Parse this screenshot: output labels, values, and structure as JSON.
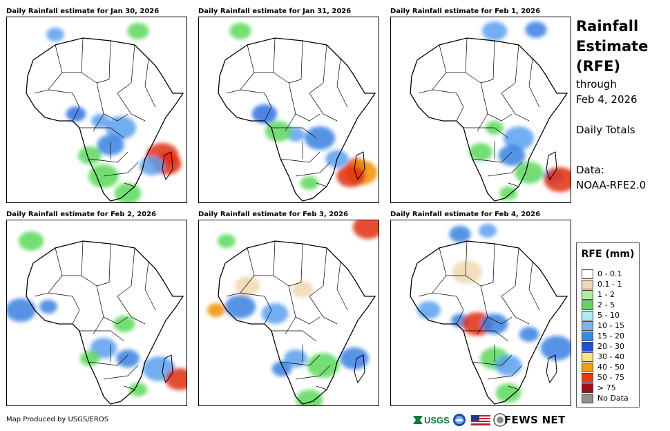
{
  "panels": [
    {
      "title": "Daily Rainfall estimate for Jan 30, 2026",
      "blobs": [
        [
          135,
          150,
          "#5aa0ee"
        ],
        [
          165,
          160,
          "#5aa0ee"
        ],
        [
          150,
          185,
          "#3a80e0"
        ],
        [
          120,
          200,
          "#5cd85c"
        ],
        [
          100,
          140,
          "#2f6fe0"
        ],
        [
          225,
          200,
          "#e03010"
        ],
        [
          232,
          212,
          "#e03010"
        ],
        [
          210,
          215,
          "#5aa0ee"
        ],
        [
          190,
          20,
          "#5cd85c"
        ],
        [
          70,
          25,
          "#5aa0ee"
        ],
        [
          140,
          230,
          "#5cd85c"
        ],
        [
          175,
          255,
          "#5cd85c"
        ]
      ]
    },
    {
      "title": "Daily Rainfall estimate for Jan 31, 2026",
      "blobs": [
        [
          140,
          170,
          "#5aa0ee"
        ],
        [
          175,
          175,
          "#3a80e0"
        ],
        [
          115,
          165,
          "#5cd85c"
        ],
        [
          200,
          205,
          "#5aa0ee"
        ],
        [
          228,
          215,
          "#e03010"
        ],
        [
          235,
          225,
          "#f09000"
        ],
        [
          220,
          230,
          "#e03010"
        ],
        [
          95,
          140,
          "#2f6fe0"
        ],
        [
          60,
          20,
          "#5cd85c"
        ],
        [
          160,
          240,
          "#5cd85c"
        ]
      ]
    },
    {
      "title": "Daily Rainfall estimate for Feb 1, 2026",
      "blobs": [
        [
          150,
          160,
          "#5cd85c"
        ],
        [
          185,
          175,
          "#5aa0ee"
        ],
        [
          175,
          200,
          "#3a80e0"
        ],
        [
          130,
          195,
          "#5cd85c"
        ],
        [
          235,
          230,
          "#5aa0ee"
        ],
        [
          245,
          235,
          "#e03010"
        ],
        [
          200,
          225,
          "#5cd85c"
        ],
        [
          150,
          20,
          "#5aa0ee"
        ],
        [
          210,
          18,
          "#3a80e0"
        ],
        [
          170,
          255,
          "#5cd85c"
        ]
      ]
    },
    {
      "title": "Daily Rainfall estimate for Feb 2, 2026",
      "blobs": [
        [
          60,
          125,
          "#3a80e0"
        ],
        [
          20,
          130,
          "#3a80e0"
        ],
        [
          140,
          185,
          "#5aa0ee"
        ],
        [
          175,
          200,
          "#3a80e0"
        ],
        [
          120,
          200,
          "#5cd85c"
        ],
        [
          220,
          215,
          "#5aa0ee"
        ],
        [
          250,
          230,
          "#e03010"
        ],
        [
          35,
          30,
          "#5cd85c"
        ],
        [
          170,
          150,
          "#5cd85c"
        ],
        [
          190,
          245,
          "#5cd85c"
        ]
      ]
    },
    {
      "title": "Daily Rainfall estimate for Feb 3, 2026",
      "blobs": [
        [
          25,
          130,
          "#f09000"
        ],
        [
          60,
          125,
          "#3a80e0"
        ],
        [
          110,
          135,
          "#5aa0ee"
        ],
        [
          140,
          200,
          "#5aa0ee"
        ],
        [
          120,
          215,
          "#3a80e0"
        ],
        [
          180,
          210,
          "#5cd85c"
        ],
        [
          225,
          200,
          "#3a80e0"
        ],
        [
          70,
          95,
          "#f0d8b0"
        ],
        [
          150,
          100,
          "#f0d8b0"
        ],
        [
          40,
          30,
          "#5cd85c"
        ],
        [
          245,
          10,
          "#e03010"
        ],
        [
          160,
          260,
          "#5cd85c"
        ]
      ]
    },
    {
      "title": "Daily Rainfall estimate for Feb 4, 2026",
      "blobs": [
        [
          100,
          145,
          "#3a80e0"
        ],
        [
          125,
          150,
          "#e03010"
        ],
        [
          150,
          150,
          "#3a80e0"
        ],
        [
          55,
          130,
          "#5aa0ee"
        ],
        [
          200,
          165,
          "#3a80e0"
        ],
        [
          240,
          185,
          "#3a80e0"
        ],
        [
          150,
          200,
          "#5cd85c"
        ],
        [
          170,
          250,
          "#5cd85c"
        ],
        [
          100,
          20,
          "#3a80e0"
        ],
        [
          140,
          15,
          "#5aa0ee"
        ],
        [
          110,
          75,
          "#f0d8b0"
        ],
        [
          170,
          210,
          "#5aa0ee"
        ]
      ]
    }
  ],
  "side": {
    "title_line1": "Rainfall",
    "title_line2": "Estimate",
    "title_line3": "(RFE)",
    "through": "through",
    "date": "Feb 4, 2026",
    "totals": "Daily Totals",
    "data_label": "Data:",
    "data_source": "NOAA-RFE2.0"
  },
  "legend": {
    "title": "RFE (mm)",
    "items": [
      {
        "label": "0 - 0.1",
        "color": "#ffffff"
      },
      {
        "label": "0.1 - 1",
        "color": "#f0d8b8"
      },
      {
        "label": "1 - 2",
        "color": "#a8f0a0"
      },
      {
        "label": "2 - 5",
        "color": "#5cd85c"
      },
      {
        "label": "5 - 10",
        "color": "#b0ecf4"
      },
      {
        "label": "10 - 15",
        "color": "#78b4ee"
      },
      {
        "label": "15 - 20",
        "color": "#3a8ae8"
      },
      {
        "label": "20 - 30",
        "color": "#2050d8"
      },
      {
        "label": "30 - 40",
        "color": "#f8e090"
      },
      {
        "label": "40 - 50",
        "color": "#f0a010"
      },
      {
        "label": "50 - 75",
        "color": "#e83c10"
      },
      {
        "label": "> 75",
        "color": "#a01010"
      },
      {
        "label": "No Data",
        "color": "#909090"
      }
    ]
  },
  "footer": {
    "credit": "Map Produced by USGS/EROS",
    "usgs": "USGS",
    "fews": "FEWS NET"
  }
}
